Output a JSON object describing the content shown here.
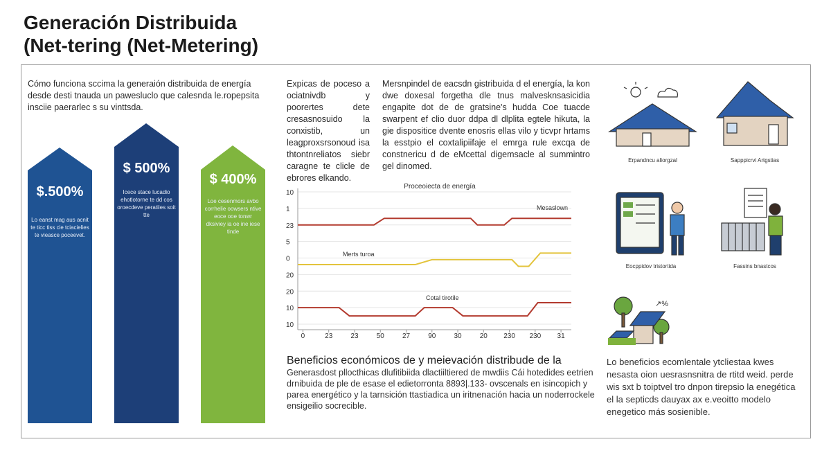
{
  "header": {
    "title_lines": [
      "Generación Distribuida",
      "(Net-tering (Net-Metering)"
    ]
  },
  "intro": "Cómo funciona sccima la generaión distribuida de energía desde desti tnauda un pawesluclo que calesnda le.ropepsita insciie paerarlec s su vinttsda.",
  "columns": [
    {
      "value": "$.500%",
      "text": "Lo eanst mag aus acnit te ticc tiss cie tciacielies te vieasce poceevet."
    },
    {
      "value": "$ 500%",
      "text": "Icece stace lucadio ehotlotorne te dd cos oroecdeve peratiies soit tte"
    },
    {
      "value": "$ 400%",
      "text": "Loe cesenmors avbo corrhelie oowsers ntive eoce ooe tonwr dksiviey ia oe ine iese tinde"
    }
  ],
  "middle_text": [
    "Expicas de poceso a ociatnivdb y poorertes dete cresasnosuido la conxistib, un leagproxsrsonoud isa thtontnreliatos siebr caragne te clicle de ebrores elkando.",
    "Mersnpindel de eacsdn gistribuida d el energía, la kon dwe doxesal forgetha dle tnus malvesknsasicidia engapite dot de de gratsine's hudda Coe tuacde swarpent ef clio duor ddpa dl dlplita egtele hikuta, la gie dispositice dvente enosris ellas vilo y ticvpr hrtams la esstpio el coxtalipiifaje el emrga rule excqa de constnericu d de eMcettal digemsacle al summintro gel dinomed."
  ],
  "chart_data": {
    "type": "line",
    "title": "Proceoiecta de energía",
    "xlim": [
      -0.2,
      10.4
    ],
    "xticks": [
      {
        "value": 0,
        "label": "0"
      },
      {
        "value": 1,
        "label": "23"
      },
      {
        "value": 2,
        "label": "23"
      },
      {
        "value": 3,
        "label": "50"
      },
      {
        "value": 4,
        "label": "27"
      },
      {
        "value": 5,
        "label": "90"
      },
      {
        "value": 6,
        "label": "30"
      },
      {
        "value": 7,
        "label": "20"
      },
      {
        "value": 8,
        "label": "230"
      },
      {
        "value": 9,
        "label": "230"
      },
      {
        "value": 10,
        "label": "31"
      }
    ],
    "ylim": [
      0,
      8
    ],
    "yticks": [
      {
        "value": 8,
        "label": "10"
      },
      {
        "value": 7,
        "label": "1"
      },
      {
        "value": 6,
        "label": "23"
      },
      {
        "value": 5,
        "label": "5"
      },
      {
        "value": 4,
        "label": "0"
      },
      {
        "value": 3,
        "label": "20"
      },
      {
        "value": 2,
        "label": "20"
      },
      {
        "value": 1,
        "label": "10"
      },
      {
        "value": 0,
        "label": "10"
      }
    ],
    "grid": true,
    "series": [
      {
        "name": "Mesaslown",
        "color": "#b33a2e",
        "x": [
          -0.2,
          2.75,
          3.15,
          6.5,
          6.76,
          7.8,
          8.1,
          10.4
        ],
        "values": [
          6.0,
          6.0,
          6.4,
          6.4,
          6.0,
          6.0,
          6.4,
          6.4
        ]
      },
      {
        "name": "Merts turoa",
        "color": "#e3c43c",
        "x": [
          -0.2,
          4.35,
          5.0,
          8.1,
          8.35,
          8.75,
          9.2,
          10.4
        ],
        "values": [
          3.6,
          3.6,
          3.9,
          3.9,
          3.5,
          3.5,
          4.3,
          4.3
        ]
      },
      {
        "name": "Cotal tirotile",
        "color": "#b33a2e",
        "x": [
          -0.2,
          1.4,
          1.8,
          4.35,
          4.7,
          5.8,
          6.2,
          8.7,
          9.1,
          10.4
        ],
        "values": [
          1.0,
          1.0,
          0.5,
          0.5,
          1.0,
          1.0,
          0.5,
          0.5,
          1.3,
          1.3
        ]
      }
    ]
  },
  "icons": [
    {
      "caption": "Erpandncu aliorgzal"
    },
    {
      "caption": "Sapppicrvi Artgstias"
    },
    {
      "caption": "Eocppidov tristortida"
    },
    {
      "caption": "Fassins bnastcos"
    }
  ],
  "bottom_left": {
    "heading": "Beneficios económicos de y meievación distribude de la",
    "text": "Generasdost pllocthicas dlufitibiida dlactiiltiered de mwdiis Cái hotedides eetrien drnibuida de ple de esase el edietorronta 8893|.133- ovscenals en isincopich y parea energético y la tarnsición ttastiadica un iritnenación hacia un noderrockele ensigeilio socrecible."
  },
  "bottom_right": {
    "text": "Lo beneficios ecomlentale ytcliestaa kwes nesasta oion uesrasnsnitra de rtitd weid. perde wis sxt b toiptvel tro dnpon tirepsio la enegética el la septicds dauyax ax e.veoitto modelo enegetico más sosienible."
  }
}
